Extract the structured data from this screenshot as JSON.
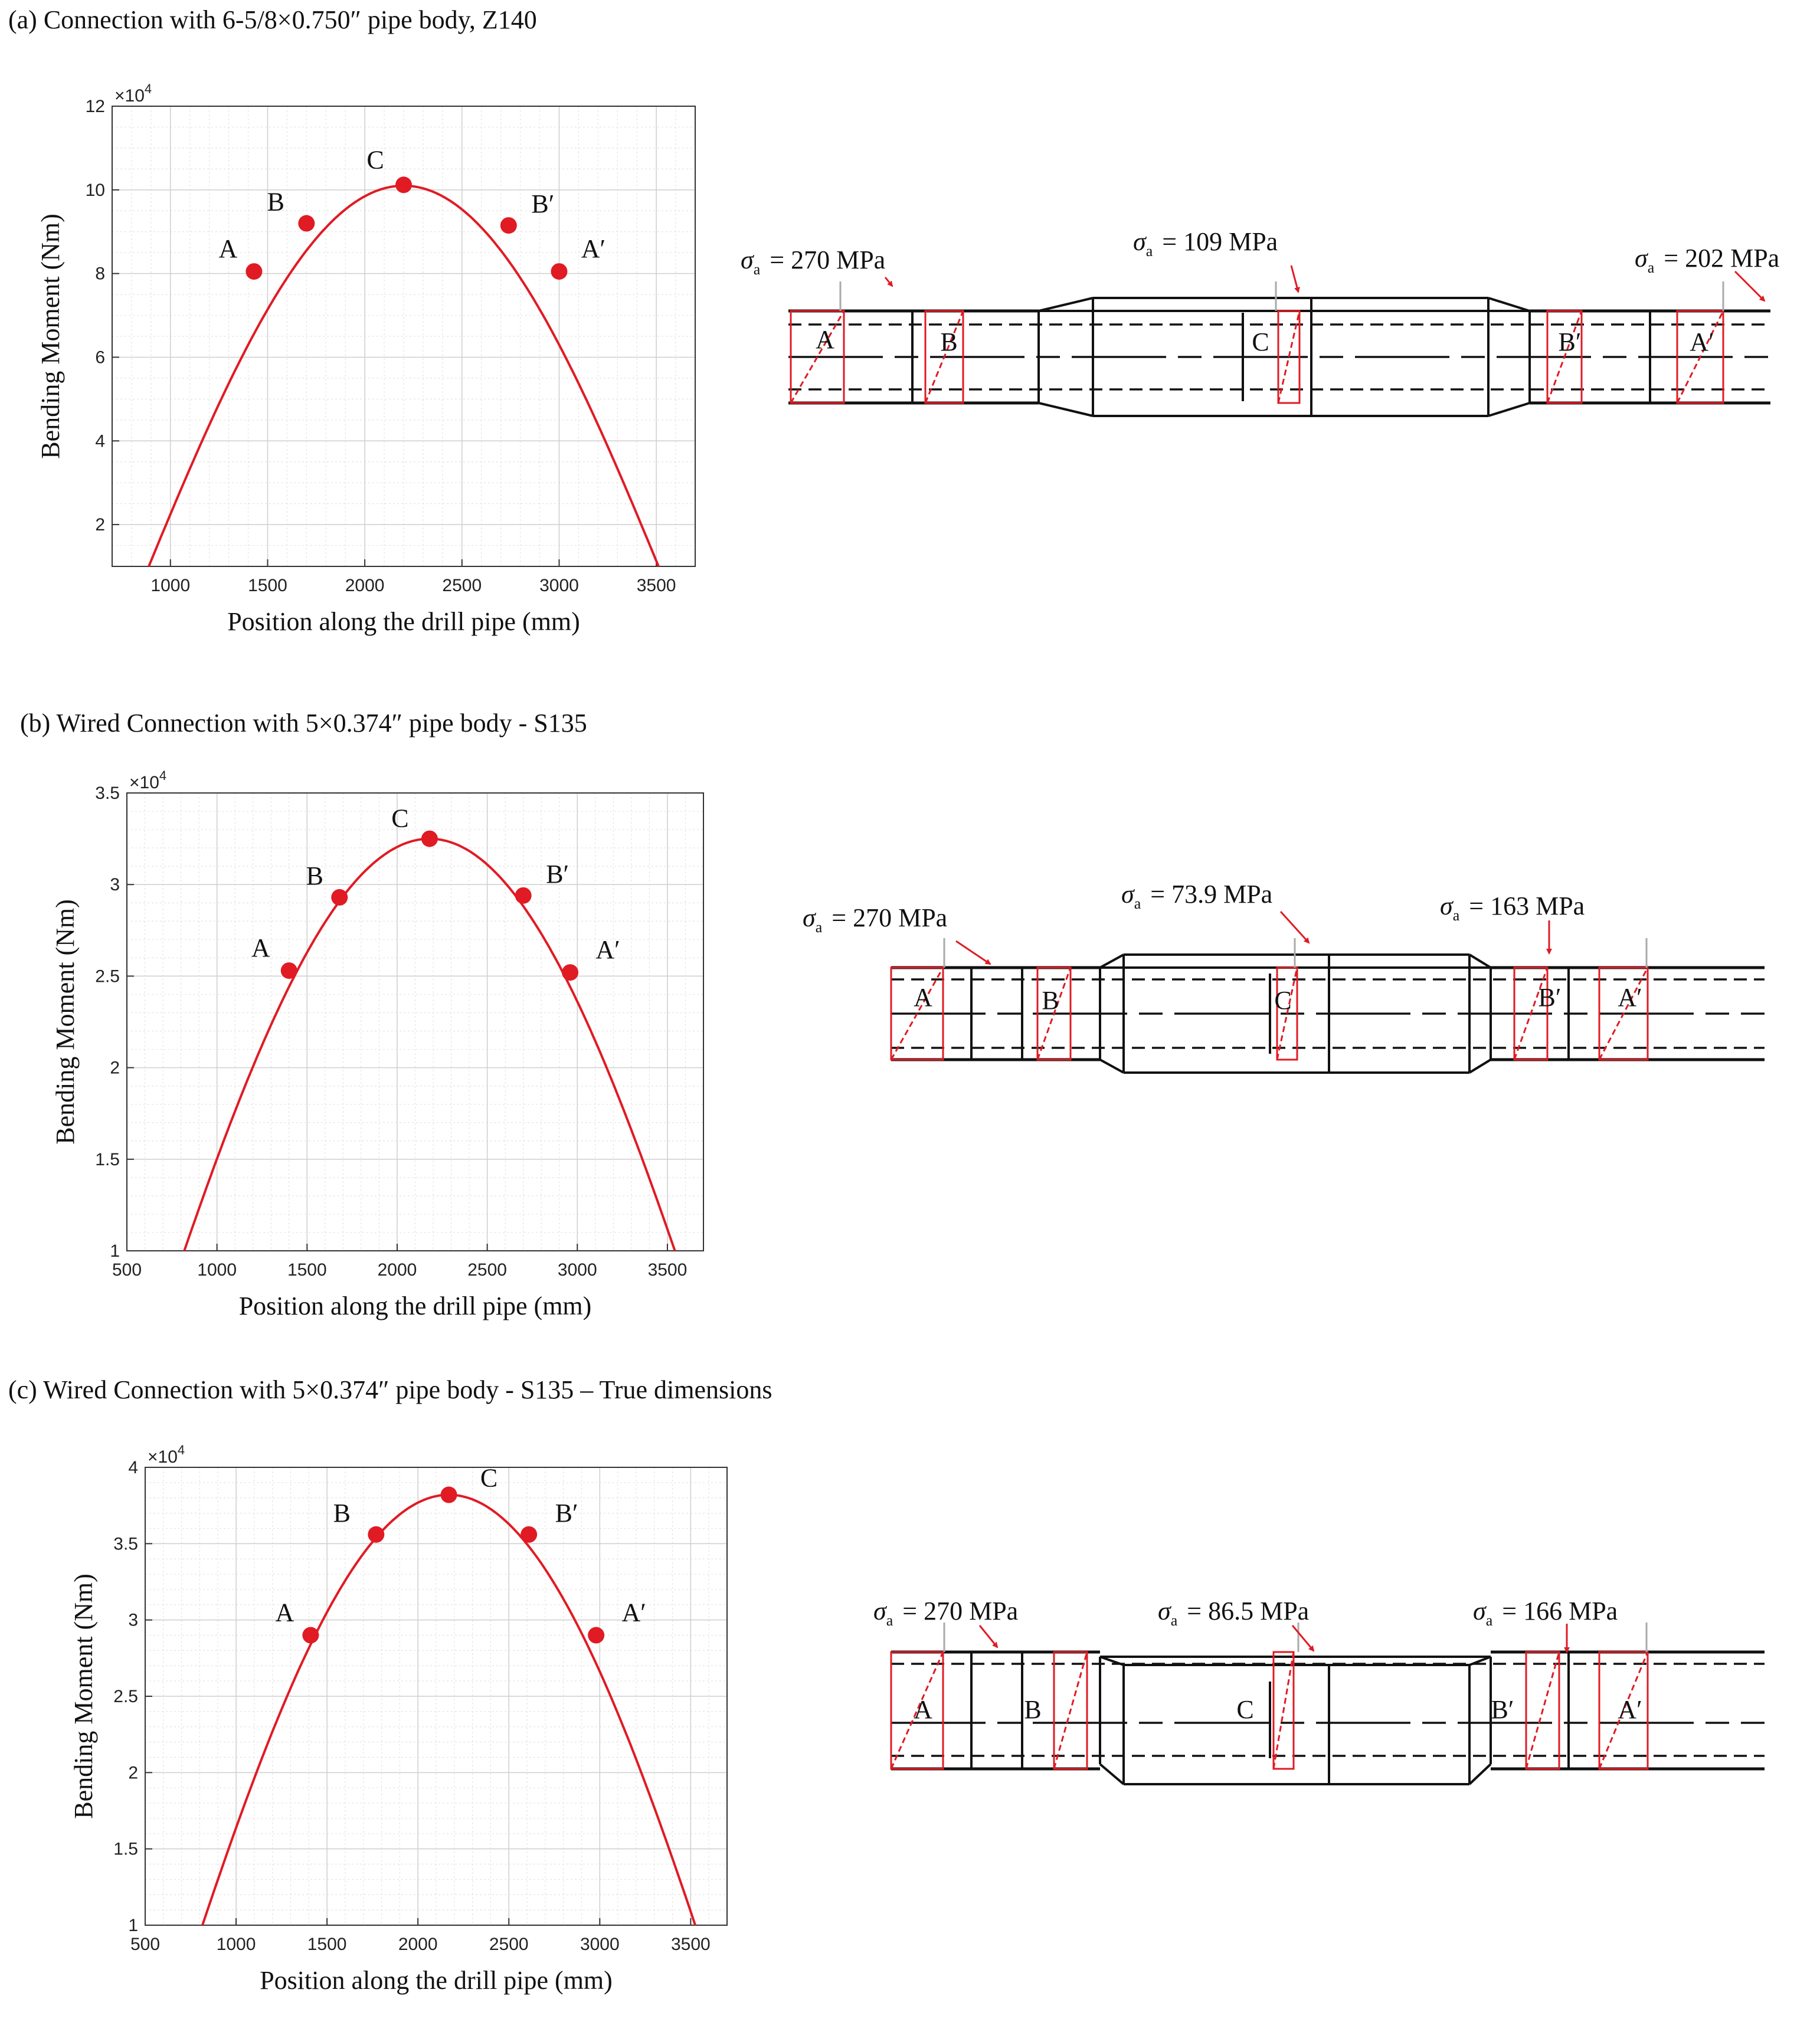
{
  "panels": [
    {
      "title": "(a) Connection with 6-5/8×0.750″ pipe body, Z140",
      "chart_data": {
        "type": "line",
        "xlabel": "Position along the drill pipe (mm)",
        "ylabel": "Bending Moment (Nm)",
        "exponent": "×10",
        "exponent_power": "4",
        "xlim": [
          700,
          3700
        ],
        "ylim": [
          1,
          12
        ],
        "xticks": [
          "1000",
          "1500",
          "2000",
          "2500",
          "3000",
          "3500"
        ],
        "yticks": [
          "2",
          "4",
          "6",
          "8",
          "10",
          "12"
        ],
        "curve": {
          "x0": 2200,
          "peak": 10.1,
          "halfwidth": 1400
        },
        "points": [
          {
            "label": "A",
            "x": 1430,
            "y": 8.05
          },
          {
            "label": "B",
            "x": 1700,
            "y": 9.2
          },
          {
            "label": "C",
            "x": 2200,
            "y": 10.12
          },
          {
            "label": "B′",
            "x": 2740,
            "y": 9.15
          },
          {
            "label": "A′",
            "x": 3000,
            "y": 8.05
          }
        ],
        "line_color": "#e01b24"
      },
      "stresses": [
        {
          "sym": "σ",
          "sub": "a",
          "text": "= 270 MPa"
        },
        {
          "sym": "σ",
          "sub": "a",
          "text": "= 109 MPa"
        },
        {
          "sym": "σ",
          "sub": "a",
          "text": "= 202 MPa"
        }
      ],
      "sections": [
        "A",
        "B",
        "C",
        "B′",
        "A′"
      ]
    },
    {
      "title": "(b) Wired Connection with 5×0.374″ pipe body - S135",
      "chart_data": {
        "type": "line",
        "xlabel": "Position along the drill pipe (mm)",
        "ylabel": "Bending Moment (Nm)",
        "exponent": "×10",
        "exponent_power": "4",
        "xlim": [
          500,
          3700
        ],
        "ylim": [
          1,
          3.5
        ],
        "xticks": [
          "500",
          "1000",
          "1500",
          "2000",
          "2500",
          "3000",
          "3500"
        ],
        "yticks": [
          "1",
          "1.5",
          "2",
          "2.5",
          "3",
          "3.5"
        ],
        "curve": {
          "x0": 2180,
          "peak": 3.25,
          "halfwidth": 1700
        },
        "points": [
          {
            "label": "A",
            "x": 1400,
            "y": 2.53
          },
          {
            "label": "B",
            "x": 1680,
            "y": 2.93
          },
          {
            "label": "C",
            "x": 2180,
            "y": 3.25
          },
          {
            "label": "B′",
            "x": 2700,
            "y": 2.94
          },
          {
            "label": "A′",
            "x": 2960,
            "y": 2.52
          }
        ],
        "line_color": "#e01b24"
      },
      "stresses": [
        {
          "sym": "σ",
          "sub": "a",
          "text": "= 270 MPa"
        },
        {
          "sym": "σ",
          "sub": "a",
          "text": "= 73.9 MPa"
        },
        {
          "sym": "σ",
          "sub": "a",
          "text": "= 163 MPa"
        }
      ],
      "sections": [
        "A",
        "B",
        "C",
        "B′",
        "A′"
      ]
    },
    {
      "title": "(c) Wired Connection with 5×0.374″ pipe body - S135 – True dimensions",
      "chart_data": {
        "type": "line",
        "xlabel": "Position along the drill pipe (mm)",
        "ylabel": "Bending Moment (Nm)",
        "exponent": "×10",
        "exponent_power": "4",
        "xlim": [
          500,
          3700
        ],
        "ylim": [
          1,
          4
        ],
        "xticks": [
          "500",
          "1000",
          "1500",
          "2000",
          "2500",
          "3000",
          "3500"
        ],
        "yticks": [
          "1",
          "1.5",
          "2",
          "2.5",
          "3",
          "3.5",
          "4"
        ],
        "curve": {
          "x0": 2170,
          "peak": 3.82,
          "halfwidth": 1630
        },
        "points": [
          {
            "label": "A",
            "x": 1410,
            "y": 2.9
          },
          {
            "label": "B",
            "x": 1770,
            "y": 3.56
          },
          {
            "label": "C",
            "x": 2170,
            "y": 3.82
          },
          {
            "label": "B′",
            "x": 2610,
            "y": 3.56
          },
          {
            "label": "A′",
            "x": 2980,
            "y": 2.9
          }
        ],
        "line_color": "#e01b24"
      },
      "stresses": [
        {
          "sym": "σ",
          "sub": "a",
          "text": "= 270 MPa"
        },
        {
          "sym": "σ",
          "sub": "a",
          "text": "= 86.5 MPa"
        },
        {
          "sym": "σ",
          "sub": "a",
          "text": "= 166 MPa"
        }
      ],
      "sections": [
        "A",
        "B",
        "C",
        "B′",
        "A′"
      ]
    }
  ]
}
